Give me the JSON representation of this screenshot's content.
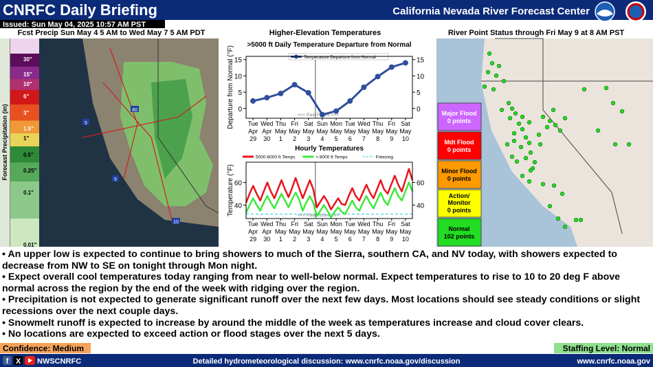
{
  "header": {
    "title": "CNRFC Daily Briefing",
    "center": "California Nevada River Forecast Center",
    "issued": "Issued: Sun May 04, 2025 10:57 AM PST"
  },
  "precip_panel": {
    "title": "Fcst Precip Sun May 4 5 AM to Wed May 7 5 AM PDT",
    "axis_label": "Forecast Precipitation (in)",
    "legend_labels": [
      "30\"",
      "15\"",
      "10\"",
      "6\"",
      "3\"",
      "1.5\"",
      "1\"",
      "0.5\"",
      "0.25\"",
      "0.1\"",
      "0.01\""
    ],
    "highway_labels": [
      "80",
      "5",
      "5",
      "10"
    ]
  },
  "temperature_panel": {
    "title": "Higher-Elevation Temperatures",
    "charts": [
      {
        "type": "line",
        "title": ">5000 ft Daily Temperature Departure from Normal",
        "y_label": "Departure from Normal (°F)",
        "annotation": "<<< Past Future >>>",
        "categories": [
          [
            "Tue",
            "Apr",
            "29"
          ],
          [
            "Wed",
            "Apr",
            "30"
          ],
          [
            "Thu",
            "May",
            "1"
          ],
          [
            "Fri",
            "May",
            "2"
          ],
          [
            "Sat",
            "May",
            "3"
          ],
          [
            "Sun",
            "May",
            "4"
          ],
          [
            "Mon",
            "May",
            "5"
          ],
          [
            "Tue",
            "May",
            "6"
          ],
          [
            "Wed",
            "May",
            "7"
          ],
          [
            "Thu",
            "May",
            "8"
          ],
          [
            "Fri",
            "May",
            "9"
          ],
          [
            "Sat",
            "May",
            "10"
          ]
        ],
        "series": [
          {
            "name": "Temperature Departure from Normal",
            "color": "#2f4f9a",
            "markers": true,
            "values": [
              2.3,
              3.3,
              4.6,
              7.3,
              4.8,
              -1.9,
              -0.8,
              2.3,
              6.5,
              9.8,
              12.7,
              14
            ]
          }
        ],
        "ylim": [
          -3,
          16
        ],
        "yticks": [
          0,
          5,
          10,
          15
        ],
        "y2lim": [
          -3,
          16
        ],
        "y2ticks": [
          0,
          5,
          10,
          15
        ]
      },
      {
        "type": "line",
        "title": "Hourly Temperatures",
        "y_label": "Temperature (°F)",
        "annotation": "<<< Past Future >>>",
        "categories": [
          [
            "Tue",
            "Apr",
            "29"
          ],
          [
            "Wed",
            "Apr",
            "30"
          ],
          [
            "Thu",
            "May",
            "1"
          ],
          [
            "Fri",
            "May",
            "2"
          ],
          [
            "Sat",
            "May",
            "3"
          ],
          [
            "Sun",
            "May",
            "4"
          ],
          [
            "Mon",
            "May",
            "5"
          ],
          [
            "Tue",
            "May",
            "6"
          ],
          [
            "Wed",
            "May",
            "7"
          ],
          [
            "Thu",
            "May",
            "8"
          ],
          [
            "Fri",
            "May",
            "9"
          ],
          [
            "Sat",
            "May",
            "10"
          ]
        ],
        "series": [
          {
            "name": "5000-8000 ft Temps",
            "color": "#e8141c",
            "markers": false,
            "values": [
              42,
              50,
              57,
              50,
              44,
              52,
              60,
              52,
              46,
              54,
              62,
              54,
              47,
              55,
              64,
              55,
              46,
              54,
              62,
              54,
              38,
              43,
              48,
              43,
              36,
              41,
              46,
              41,
              40,
              48,
              55,
              48,
              44,
              51,
              58,
              51,
              46,
              54,
              62,
              54,
              50,
              58,
              66,
              58,
              52,
              62,
              72,
              62
            ]
          },
          {
            "name": "> 8000 ft Temps",
            "color": "#3ce83c",
            "markers": false,
            "values": [
              33,
              40,
              46,
              40,
              35,
              42,
              48,
              42,
              37,
              44,
              50,
              44,
              38,
              45,
              51,
              45,
              35,
              42,
              48,
              42,
              30,
              35,
              40,
              35,
              29,
              34,
              38,
              34,
              32,
              38,
              44,
              38,
              35,
              42,
              48,
              42,
              37,
              44,
              51,
              44,
              40,
              48,
              55,
              48,
              44,
              52,
              60,
              52
            ]
          }
        ],
        "reference_lines": [
          {
            "name": "Freezing",
            "color": "#22c8e0",
            "value": 32
          }
        ],
        "ylim": [
          28,
          78
        ],
        "yticks": [
          40,
          60
        ],
        "y2lim": [
          28,
          78
        ],
        "y2ticks": [
          40,
          60
        ]
      }
    ]
  },
  "river_panel": {
    "title": "River Point Status through Fri May 9 at 8 AM PST",
    "statuses": [
      {
        "name": "Major Flood",
        "count_label": "0 points",
        "color": "#cc66ff"
      },
      {
        "name": "Mdt Flood",
        "count_label": "0 points",
        "color": "#ff0000"
      },
      {
        "name": "Minor Flood",
        "count_label": "0 points",
        "color": "#ff9900"
      },
      {
        "name": "Action/ Monitor",
        "count_label": "0 points",
        "color": "#ffff00"
      },
      {
        "name": "Normal",
        "count_label": "102 points",
        "color": "#22dd22"
      }
    ]
  },
  "bullets": [
    "An upper low is expected to continue to bring showers to much of the Sierra, southern CA, and NV today, with showers expected to decrease from NW to SE on tonight through Mon night.",
    "Expect overall cool temperatures today ranging from near to well-below normal.  Expect temperatures to rise to 10 to 20 deg F above normal across the region by the end of the week with ridging over the region.",
    "Precipitation is not expected to generate significant runoff over the next few days.  Most locations should see steady conditions or slight recessions over the next couple days.",
    "Snowmelt runoff is expected to increase by around the middle of the week as temperatures increase and cloud cover clears.",
    "No locations are expected to exceed action or flood stages over the next 5 days."
  ],
  "confidence": "Confidence: Medium",
  "staffing": "Staffing Level: Normal",
  "footer": {
    "handle": "NWSCNRFC",
    "discussion": "Detailed hydrometeorological discussion: www.cnrfc.noaa.gov/discussion",
    "url": "www.cnrfc.noaa.gov"
  }
}
